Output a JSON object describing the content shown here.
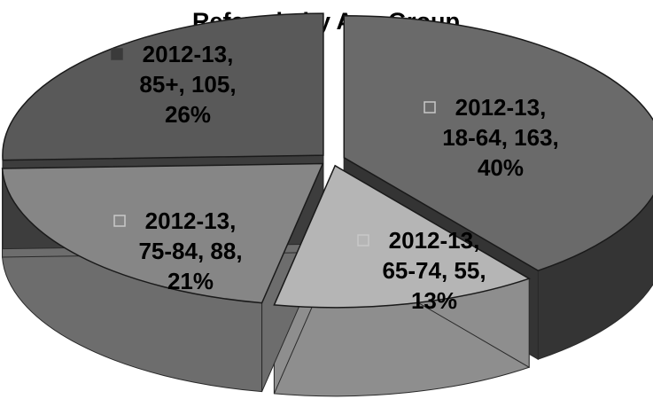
{
  "chart_data": {
    "type": "pie",
    "title": "Referrals by Age Group",
    "slices": [
      {
        "series": "2012-13",
        "category": "18-64",
        "value": 163,
        "percent": "40%",
        "color": "#6a6a6a",
        "side_color": "#343434",
        "marker": "hollow"
      },
      {
        "series": "2012-13",
        "category": "65-74",
        "value": 55,
        "percent": "13%",
        "color": "#b5b5b5",
        "side_color": "#8e8e8e",
        "marker": "hollow"
      },
      {
        "series": "2012-13",
        "category": "75-84",
        "value": 88,
        "percent": "21%",
        "color": "#868686",
        "side_color": "#6d6d6d",
        "marker": "hollow"
      },
      {
        "series": "2012-13",
        "category": "85+",
        "value": 105,
        "percent": "26%",
        "color": "#595959",
        "side_color": "#3d3d3d",
        "marker": "filled"
      }
    ],
    "legend": "none",
    "style": "3d-exploded"
  }
}
